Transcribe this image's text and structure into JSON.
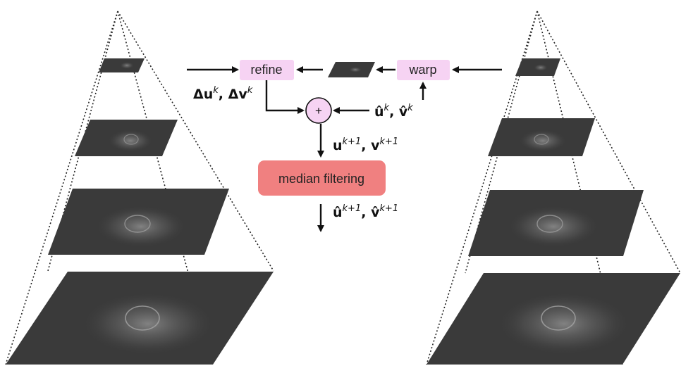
{
  "nodes": {
    "refine": "refine",
    "warp": "warp",
    "plus": "+",
    "median": "median filtering"
  },
  "labels": {
    "delta_main_u": "Δu",
    "delta_sup_u": "k",
    "delta_sep": ", ",
    "delta_main_v": "Δv",
    "delta_sup_v": "k",
    "hat_main_u": "û",
    "hat_sup_u": "k",
    "hat_sep": ", ",
    "hat_main_v": "v̂",
    "hat_sup_v": "k",
    "next_main_u": "u",
    "next_sup_u": "k+1",
    "next_sep": ", ",
    "next_main_v": "v",
    "next_sup_v": "k+1",
    "nexthat_main_u": "û",
    "nexthat_sup_u": "k+1",
    "nexthat_sep": ", ",
    "nexthat_main_v": "v̂",
    "nexthat_sup_v": "k+1"
  },
  "colors": {
    "refine_fill": "#f6d3f3",
    "warp_fill": "#f6d3f3",
    "plus_fill": "#f6d3f3",
    "median_fill": "#f08080",
    "layer_fill": "#3a3a3a",
    "arrow": "#111111"
  }
}
